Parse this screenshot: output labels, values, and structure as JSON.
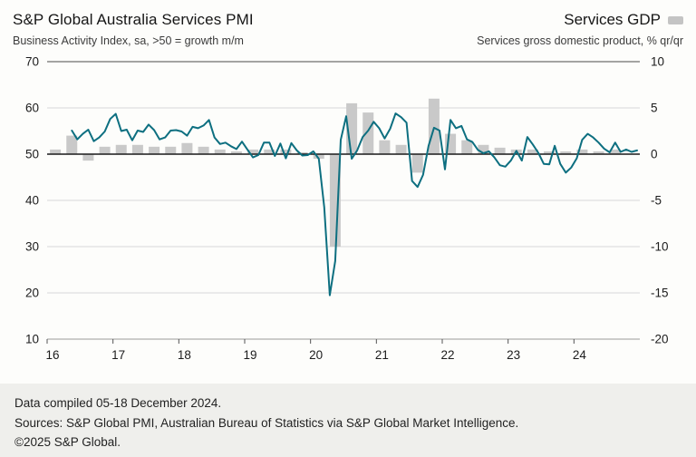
{
  "header": {
    "title": "S&P Global Australia Services PMI",
    "subtitle": "Business Activity Index, sa, >50 = growth m/m",
    "legend_title": "Services GDP",
    "legend_subtitle": "Services gross domestic product, % qr/qr",
    "legend_marker_color": "#c4c4c4"
  },
  "footer": {
    "line1": "Data compiled 05-18 December 2024.",
    "line2": "Sources: S&P Global PMI, Australian Bureau of Statistics via S&P Global Market Intelligence.",
    "line3": "©2025 S&P Global."
  },
  "chart_data": {
    "type": "line+bar",
    "title": "S&P Global Australia Services PMI vs Services GDP",
    "left_axis": {
      "min": 10,
      "max": 70,
      "ticks": [
        70,
        60,
        50,
        40,
        30,
        20,
        10
      ]
    },
    "right_axis": {
      "min": -20,
      "max": 10,
      "ticks": [
        10,
        5,
        0,
        -5,
        -10,
        -15,
        -20
      ]
    },
    "x_axis": {
      "start_year": 2016,
      "end_year": 2025,
      "tick_labels": [
        "16",
        "17",
        "18",
        "19",
        "20",
        "21",
        "22",
        "23",
        "24"
      ]
    },
    "grid_color": "#d8d8d8",
    "zero_line_color": "#1a1a1a",
    "top_line_color": "#4a4a4a",
    "bottom_line_color": "#9a9a9a",
    "series": [
      {
        "name": "S&P Global Australia Services PMI",
        "type": "line",
        "axis": "left",
        "color": "#0d6f80",
        "freq": "monthly",
        "start": "2016-05",
        "values": [
          55.1,
          53.2,
          54.4,
          55.3,
          52.8,
          53.6,
          54.9,
          57.6,
          58.7,
          55.0,
          55.3,
          53.0,
          55.1,
          54.8,
          56.4,
          55.2,
          53.2,
          53.6,
          55.1,
          55.2,
          54.9,
          54.0,
          55.9,
          55.6,
          56.2,
          57.4,
          53.6,
          52.2,
          52.5,
          51.7,
          51.1,
          52.7,
          51.0,
          49.3,
          49.8,
          52.5,
          52.5,
          49.6,
          52.3,
          49.1,
          52.4,
          50.8,
          49.7,
          49.8,
          50.6,
          49.0,
          38.5,
          19.5,
          26.9,
          53.1,
          58.2,
          49.0,
          50.8,
          53.7,
          55.1,
          57.0,
          55.6,
          53.4,
          55.5,
          58.8,
          58.0,
          56.8,
          44.2,
          42.9,
          45.5,
          51.8,
          55.7,
          55.1,
          46.7,
          57.4,
          55.6,
          56.1,
          53.2,
          52.6,
          50.9,
          50.2,
          50.6,
          49.3,
          47.6,
          47.3,
          48.6,
          50.7,
          48.6,
          53.7,
          52.1,
          50.3,
          47.9,
          47.8,
          51.8,
          47.9,
          46.0,
          47.1,
          49.1,
          53.1,
          54.4,
          53.6,
          52.5,
          51.2,
          50.4,
          52.5,
          50.5,
          51.0,
          50.5,
          50.8
        ]
      },
      {
        "name": "Services GDP",
        "type": "bar",
        "axis": "right",
        "color": "#c9c9c9",
        "freq": "quarterly",
        "start": "2016-Q1",
        "values": [
          0.5,
          2.0,
          -0.7,
          0.8,
          1.0,
          1.0,
          0.8,
          0.8,
          1.2,
          0.8,
          0.5,
          0.3,
          0.5,
          0.5,
          0.5,
          0.2,
          -0.5,
          -10.0,
          5.5,
          4.5,
          1.5,
          1.0,
          -2.0,
          6.0,
          2.2,
          1.5,
          1.0,
          0.7,
          0.5,
          0.5,
          0.3,
          0.3,
          0.5,
          0.3,
          0.5
        ]
      }
    ]
  }
}
